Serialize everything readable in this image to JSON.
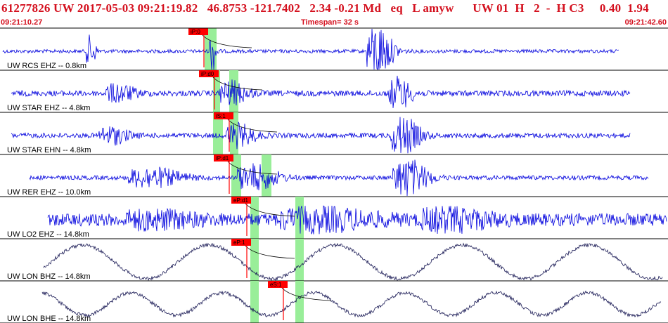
{
  "header": {
    "event_line": "61277826 UW 2017-05-03 09:21:19.82   46.8753 -121.7402   2.34 -0.21 Md   eq   L amyw      UW 01  H   2  -  H C3     0.40  1.94",
    "start_time": "09:21:10.27",
    "timespan": "Timespan=  32 s",
    "end_time": "09:21:42.60"
  },
  "colors": {
    "header_text": "#d4101e",
    "trace_short_period": "#0000dd",
    "trace_broadband": "#1a1a55",
    "pick_flag": "#ff0000",
    "pick_window": "#99ee99",
    "coda_line": "#000000"
  },
  "channels": [
    {
      "label": "UW RCS EHZ -- 0.8km",
      "pick": "iP:0"
    },
    {
      "label": "UW STAR EHZ -- 4.8km",
      "pick": "iP:d0"
    },
    {
      "label": "UW STAR EHN -- 4.8km",
      "pick": "iS:1"
    },
    {
      "label": "UW RER EHZ -- 10.0km",
      "pick": "iP:d1"
    },
    {
      "label": "UW LO2 EHZ -- 14.8km",
      "pick": "eP:d1"
    },
    {
      "label": "UW LON BHZ -- 14.8km",
      "pick": "eP:1"
    },
    {
      "label": "UW LON BHE -- 14.8km",
      "pick": "eS:1"
    }
  ]
}
